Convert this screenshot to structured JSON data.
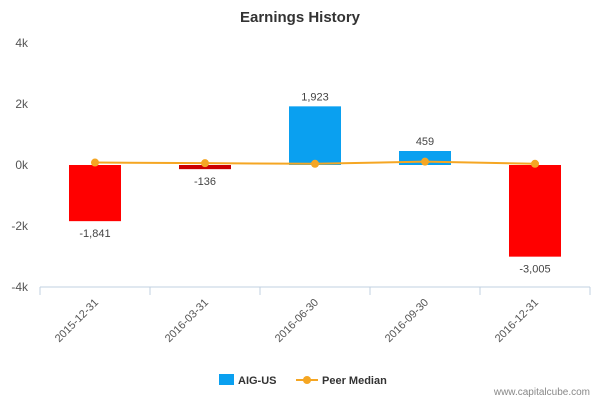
{
  "chart_data": {
    "type": "bar",
    "title": "Earnings History",
    "categories": [
      "2015-12-31",
      "2016-03-31",
      "2016-06-30",
      "2016-09-30",
      "2016-12-31"
    ],
    "series": [
      {
        "name": "AIG-US",
        "type": "bar",
        "values": [
          -1841,
          -136,
          1923,
          459,
          -3005
        ],
        "data_labels": [
          "-1,841",
          "-136",
          "1,923",
          "459",
          "-3,005"
        ]
      },
      {
        "name": "Peer Median",
        "type": "line",
        "values": [
          80,
          60,
          40,
          110,
          40
        ]
      }
    ],
    "yticks": [
      "4k",
      "2k",
      "0k",
      "-2k",
      "-4k"
    ],
    "ytick_values": [
      4000,
      2000,
      0,
      -2000,
      -4000
    ],
    "ylim": [
      -4000,
      4000
    ],
    "xlabel": "",
    "ylabel": "",
    "grid": false,
    "legend_position": "bottom-center",
    "colors": {
      "positive": "#0aa0f0",
      "negative": "#ff0000",
      "negative_small": "#cc0000",
      "peer_median": "#f5a623",
      "axis": "#c0d0e0"
    }
  },
  "watermark": "www.capitalcube.com"
}
